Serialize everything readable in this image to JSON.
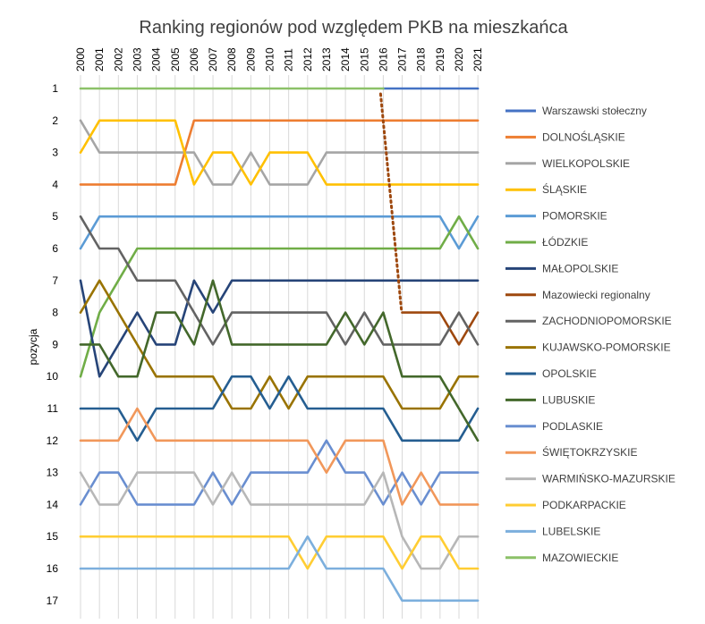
{
  "chart_data": {
    "type": "line",
    "title": "Ranking regionów pod względem PKB na mieszkańca",
    "ylabel": "pozycja",
    "xlabel": "",
    "y_reversed": true,
    "ylim": [
      1,
      17
    ],
    "y_ticks": [
      1,
      2,
      3,
      4,
      5,
      6,
      7,
      8,
      9,
      10,
      11,
      12,
      13,
      14,
      15,
      16,
      17
    ],
    "x": [
      "2000",
      "2001",
      "2002",
      "2003",
      "2004",
      "2005",
      "2006",
      "2007",
      "2008",
      "2009",
      "2010",
      "2011",
      "2012",
      "2013",
      "2014",
      "2015",
      "2016",
      "2017",
      "2018",
      "2019",
      "2020",
      "2021"
    ],
    "x_axis_position": "top",
    "legend_position": "right",
    "grid": "vertical",
    "series": [
      {
        "name": "Warszawski stołeczny",
        "color": "#4472c4",
        "values": [
          null,
          null,
          null,
          null,
          null,
          null,
          null,
          null,
          null,
          null,
          null,
          null,
          null,
          null,
          null,
          null,
          1,
          1,
          1,
          1,
          1,
          1
        ]
      },
      {
        "name": "DOLNOŚLĄSKIE",
        "color": "#ed7d31",
        "values": [
          4,
          4,
          4,
          4,
          4,
          4,
          2,
          2,
          2,
          2,
          2,
          2,
          2,
          2,
          2,
          2,
          2,
          2,
          2,
          2,
          2,
          2
        ]
      },
      {
        "name": "WIELKOPOLSKIE",
        "color": "#a5a5a5",
        "values": [
          2,
          3,
          3,
          3,
          3,
          3,
          3,
          4,
          4,
          3,
          4,
          4,
          4,
          3,
          3,
          3,
          3,
          3,
          3,
          3,
          3,
          3
        ]
      },
      {
        "name": "ŚLĄSKIE",
        "color": "#ffc000",
        "values": [
          3,
          2,
          2,
          2,
          2,
          2,
          4,
          3,
          3,
          4,
          3,
          3,
          3,
          4,
          4,
          4,
          4,
          4,
          4,
          4,
          4,
          4
        ]
      },
      {
        "name": "POMORSKIE",
        "color": "#5b9bd5",
        "values": [
          6,
          5,
          5,
          5,
          5,
          5,
          5,
          5,
          5,
          5,
          5,
          5,
          5,
          5,
          5,
          5,
          5,
          5,
          5,
          5,
          6,
          5
        ]
      },
      {
        "name": "ŁÓDZKIE",
        "color": "#70ad47",
        "values": [
          10,
          8,
          7,
          6,
          6,
          6,
          6,
          6,
          6,
          6,
          6,
          6,
          6,
          6,
          6,
          6,
          6,
          6,
          6,
          6,
          5,
          6
        ]
      },
      {
        "name": "MAŁOPOLSKIE",
        "color": "#264478",
        "values": [
          7,
          10,
          9,
          8,
          9,
          9,
          7,
          8,
          7,
          7,
          7,
          7,
          7,
          7,
          7,
          7,
          7,
          7,
          7,
          7,
          7,
          7
        ]
      },
      {
        "name": "Mazowiecki regionalny",
        "color": "#9e480e",
        "dotted_link": {
          "from_index": 16,
          "from_value": 1,
          "to_index": 17,
          "to_value": 8
        },
        "values": [
          null,
          null,
          null,
          null,
          null,
          null,
          null,
          null,
          null,
          null,
          null,
          null,
          null,
          null,
          null,
          null,
          null,
          8,
          8,
          8,
          9,
          8
        ]
      },
      {
        "name": "ZACHODNIOPOMORSKIE",
        "color": "#636363",
        "values": [
          5,
          6,
          6,
          7,
          7,
          7,
          8,
          9,
          8,
          8,
          8,
          8,
          8,
          8,
          9,
          8,
          9,
          9,
          9,
          9,
          8,
          9
        ]
      },
      {
        "name": "KUJAWSKO-POMORSKIE",
        "color": "#997300",
        "values": [
          8,
          7,
          8,
          9,
          10,
          10,
          10,
          10,
          11,
          11,
          10,
          11,
          10,
          10,
          10,
          10,
          10,
          11,
          11,
          11,
          10,
          10
        ]
      },
      {
        "name": "OPOLSKIE",
        "color": "#255e91",
        "values": [
          11,
          11,
          11,
          12,
          11,
          11,
          11,
          11,
          10,
          10,
          11,
          10,
          11,
          11,
          11,
          11,
          11,
          12,
          12,
          12,
          12,
          11
        ]
      },
      {
        "name": "LUBUSKIE",
        "color": "#43682b",
        "values": [
          9,
          9,
          10,
          10,
          8,
          8,
          9,
          7,
          9,
          9,
          9,
          9,
          9,
          9,
          8,
          9,
          8,
          10,
          10,
          10,
          11,
          12
        ]
      },
      {
        "name": "PODLASKIE",
        "color": "#698ed0",
        "values": [
          14,
          13,
          13,
          14,
          14,
          14,
          14,
          13,
          14,
          13,
          13,
          13,
          13,
          12,
          13,
          13,
          14,
          13,
          14,
          13,
          13,
          13
        ]
      },
      {
        "name": "ŚWIĘTOKRZYSKIE",
        "color": "#f1975a",
        "values": [
          12,
          12,
          12,
          11,
          12,
          12,
          12,
          12,
          12,
          12,
          12,
          12,
          12,
          13,
          12,
          12,
          12,
          14,
          13,
          14,
          14,
          14
        ]
      },
      {
        "name": "WARMIŃSKO-MAZURSKIE",
        "color": "#b7b7b7",
        "values": [
          13,
          14,
          14,
          13,
          13,
          13,
          13,
          14,
          13,
          14,
          14,
          14,
          14,
          14,
          14,
          14,
          13,
          15,
          16,
          16,
          15,
          15
        ]
      },
      {
        "name": "PODKARPACKIE",
        "color": "#ffcd33",
        "values": [
          15,
          15,
          15,
          15,
          15,
          15,
          15,
          15,
          15,
          15,
          15,
          15,
          16,
          15,
          15,
          15,
          15,
          16,
          15,
          15,
          16,
          16
        ]
      },
      {
        "name": "LUBELSKIE",
        "color": "#7cafdd",
        "values": [
          16,
          16,
          16,
          16,
          16,
          16,
          16,
          16,
          16,
          16,
          16,
          16,
          15,
          16,
          16,
          16,
          16,
          17,
          17,
          17,
          17,
          17
        ]
      },
      {
        "name": "MAZOWIECKIE",
        "color": "#8cc168",
        "values": [
          1,
          1,
          1,
          1,
          1,
          1,
          1,
          1,
          1,
          1,
          1,
          1,
          1,
          1,
          1,
          1,
          1,
          null,
          null,
          null,
          null,
          null
        ]
      }
    ]
  }
}
